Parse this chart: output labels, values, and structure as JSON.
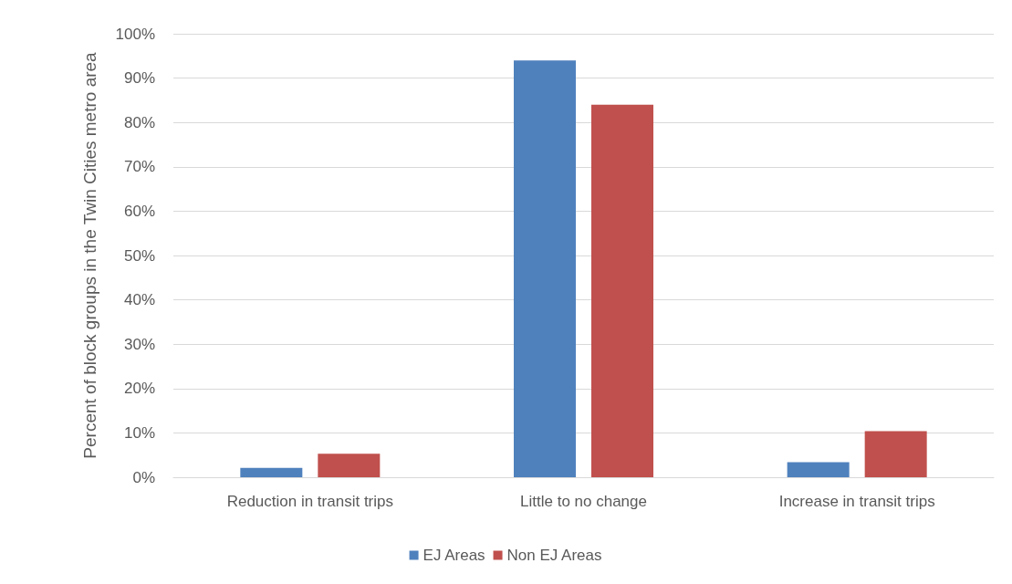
{
  "chart_data": {
    "type": "bar",
    "ylabel": "Percent of block groups in the Twin Cities metro area",
    "categories": [
      "Reduction in transit trips",
      "Little to no change",
      "Increase in transit trips"
    ],
    "series": [
      {
        "name": "EJ Areas",
        "color": "#4f81bd",
        "values": [
          2.1,
          94,
          3.4
        ]
      },
      {
        "name": "Non EJ Areas",
        "color": "#c0504d",
        "values": [
          5.3,
          84,
          10.4
        ]
      }
    ],
    "ylim": [
      0,
      100
    ],
    "yticks": [
      {
        "value": 0,
        "label": "0%"
      },
      {
        "value": 10,
        "label": "10%"
      },
      {
        "value": 20,
        "label": "20%"
      },
      {
        "value": 30,
        "label": "30%"
      },
      {
        "value": 40,
        "label": "40%"
      },
      {
        "value": 50,
        "label": "50%"
      },
      {
        "value": 60,
        "label": "60%"
      },
      {
        "value": 70,
        "label": "70%"
      },
      {
        "value": 80,
        "label": "80%"
      },
      {
        "value": 90,
        "label": "90%"
      },
      {
        "value": 100,
        "label": "100%"
      }
    ],
    "grid": "y",
    "legend": "bottom"
  }
}
